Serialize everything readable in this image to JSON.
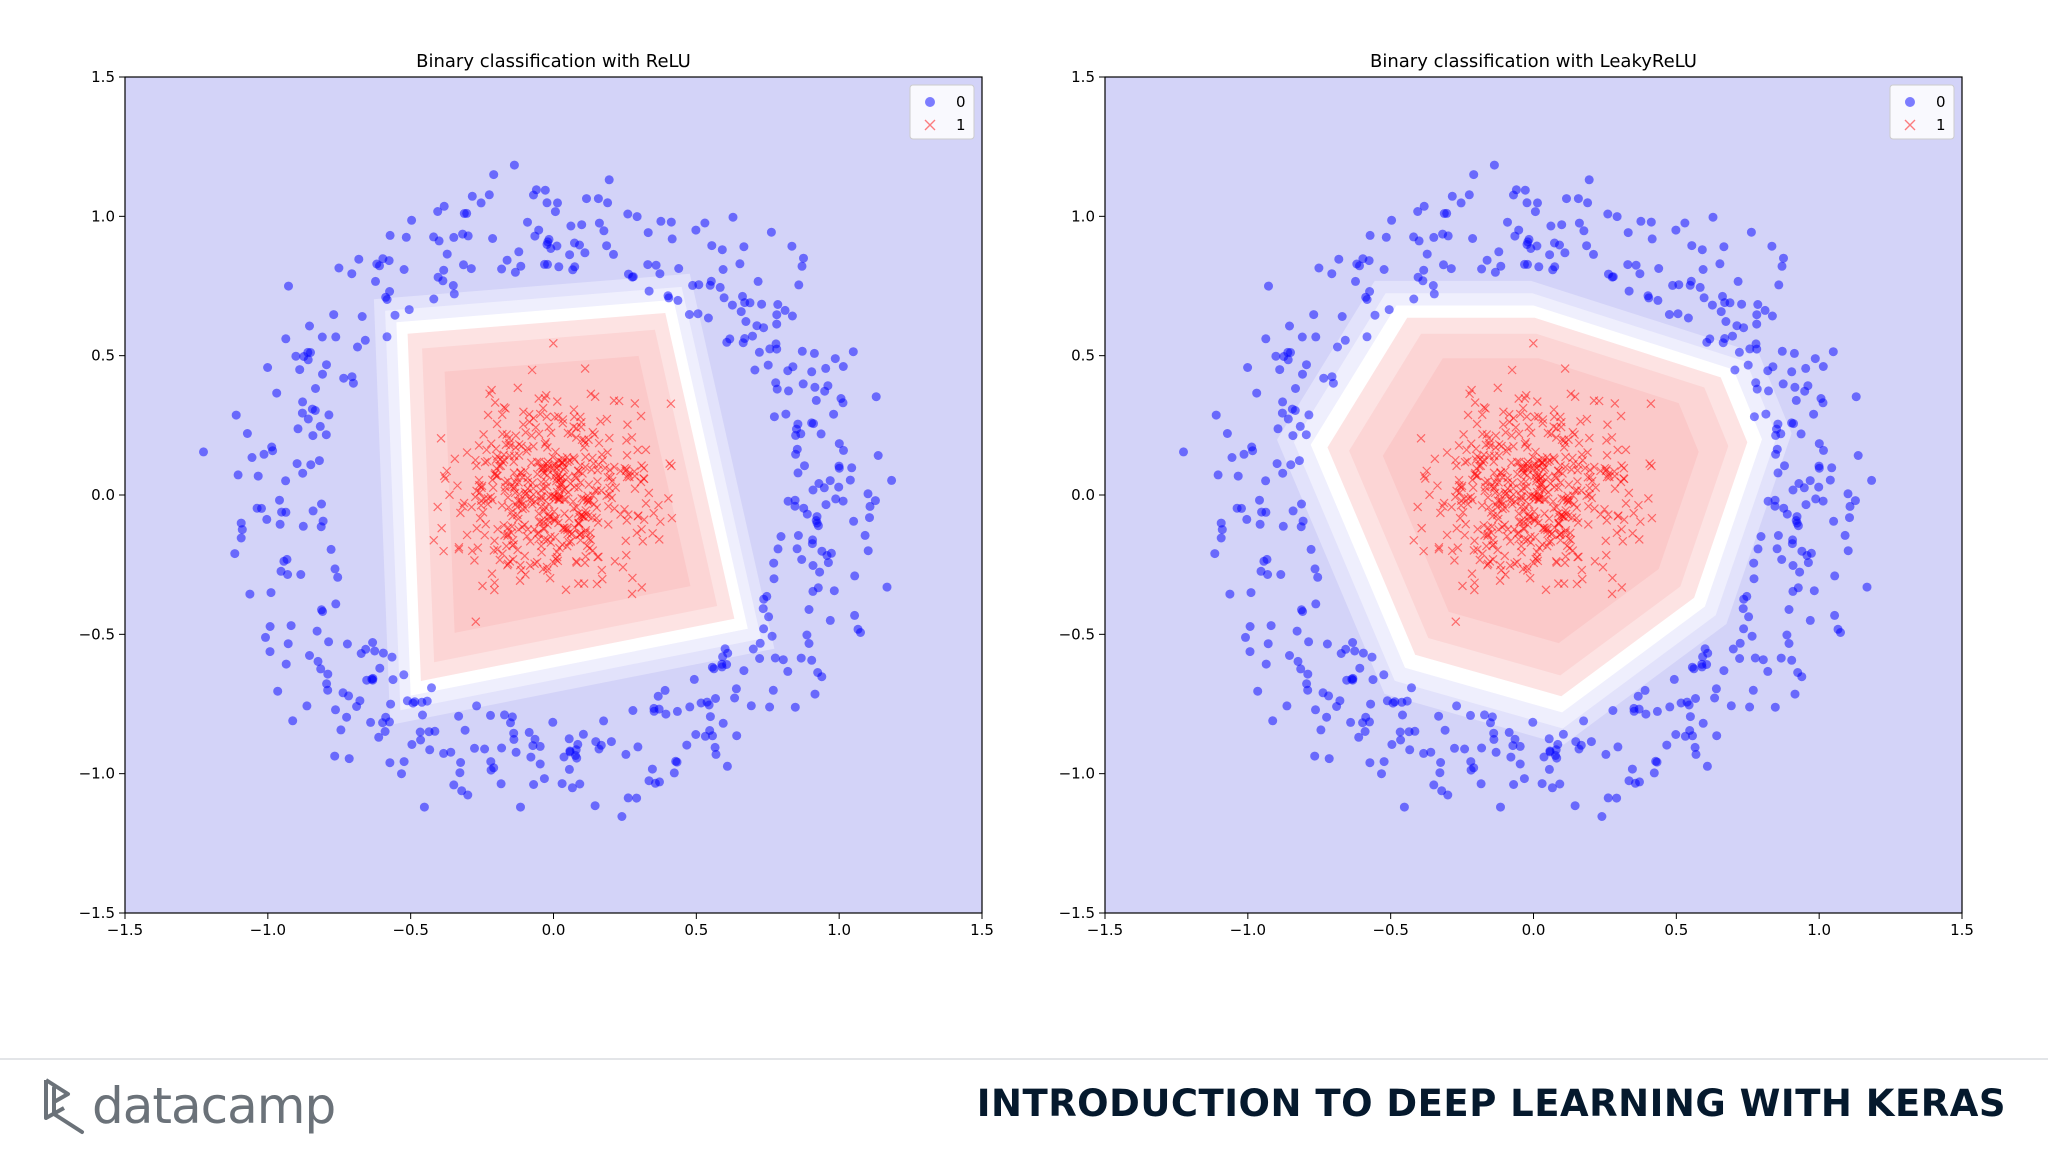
{
  "chart_data": [
    {
      "type": "scatter",
      "title": "Binary classification with ReLU",
      "xlabel": "",
      "ylabel": "",
      "xlim": [
        -1.5,
        1.5
      ],
      "ylim": [
        -1.5,
        1.5
      ],
      "xticks": [
        "−1.5",
        "−1.0",
        "−0.5",
        "0.0",
        "0.5",
        "1.0",
        "1.5"
      ],
      "yticks": [
        "−1.5",
        "−1.0",
        "−0.5",
        "0.0",
        "0.5",
        "1.0",
        "1.5"
      ],
      "grid": false,
      "legend_position": "top-right",
      "background_region": "class 0 (blue)",
      "decision_region_shape": "quadrilateral",
      "decision_region_vertices": [
        [
          -0.55,
          0.62
        ],
        [
          0.42,
          0.7
        ],
        [
          0.68,
          -0.48
        ],
        [
          -0.5,
          -0.72
        ]
      ],
      "series": [
        {
          "name": "0",
          "marker": "circle",
          "color": "#0000ff",
          "distribution": "ring",
          "radius_range": [
            0.8,
            1.25
          ],
          "count": 500
        },
        {
          "name": "1",
          "marker": "x",
          "color": "#ff0000",
          "distribution": "gaussian cluster",
          "center": [
            0.0,
            0.0
          ],
          "spread": 0.17,
          "count": 500
        }
      ]
    },
    {
      "type": "scatter",
      "title": "Binary classification with LeakyReLU",
      "xlabel": "",
      "ylabel": "",
      "xlim": [
        -1.5,
        1.5
      ],
      "ylim": [
        -1.5,
        1.5
      ],
      "xticks": [
        "−1.5",
        "−1.0",
        "−0.5",
        "0.0",
        "0.5",
        "1.0",
        "1.5"
      ],
      "yticks": [
        "−1.5",
        "−1.0",
        "−0.5",
        "0.0",
        "0.5",
        "1.0",
        "1.5"
      ],
      "grid": false,
      "legend_position": "top-right",
      "background_region": "class 0 (blue)",
      "decision_region_shape": "polygon",
      "decision_region_vertices": [
        [
          -0.48,
          0.68
        ],
        [
          0.0,
          0.68
        ],
        [
          0.7,
          0.45
        ],
        [
          0.8,
          0.2
        ],
        [
          0.6,
          -0.4
        ],
        [
          0.1,
          -0.78
        ],
        [
          -0.45,
          -0.62
        ],
        [
          -0.78,
          0.18
        ]
      ],
      "series": [
        {
          "name": "0",
          "marker": "circle",
          "color": "#0000ff",
          "distribution": "ring",
          "radius_range": [
            0.8,
            1.25
          ],
          "count": 500
        },
        {
          "name": "1",
          "marker": "x",
          "color": "#ff0000",
          "distribution": "gaussian cluster",
          "center": [
            0.0,
            0.0
          ],
          "spread": 0.17,
          "count": 500
        }
      ]
    }
  ],
  "footer": {
    "brand": "datacamp",
    "course_title": "INTRODUCTION TO DEEP LEARNING WITH KERAS"
  },
  "colors": {
    "class0_region": "#d3d3f8",
    "class1_region_core": "#fbc9c9",
    "class0_point": "#0000ff",
    "class1_point": "#ff0000",
    "footer_text": "#05192d",
    "brand_gray": "#6b7279"
  }
}
